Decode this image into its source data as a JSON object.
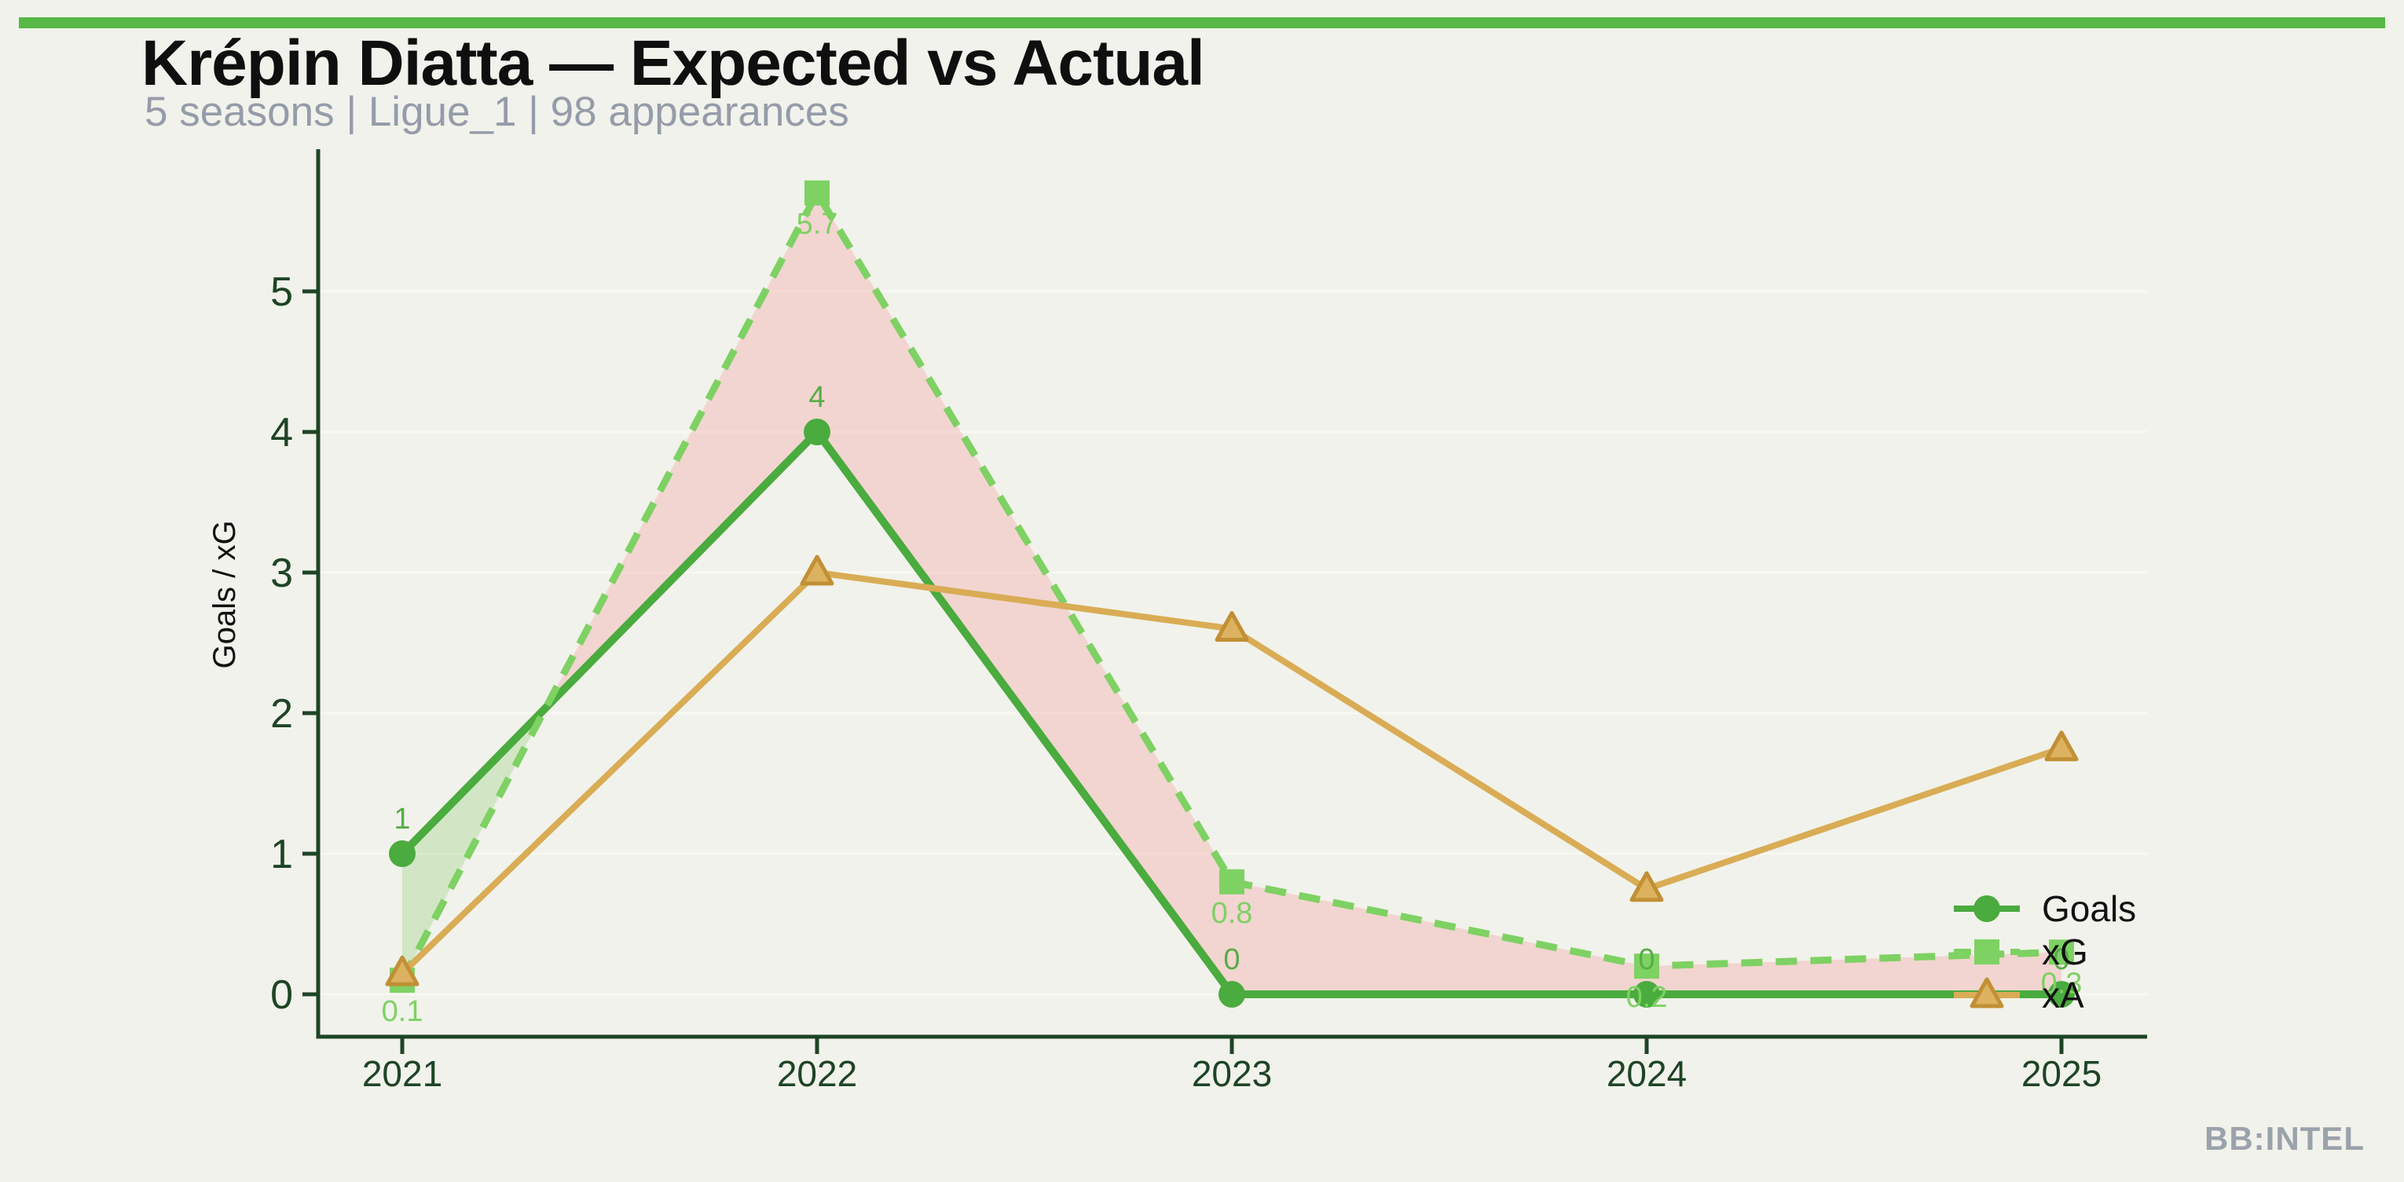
{
  "page": {
    "background": "#f1f2eb",
    "accent_bar_color": "#57b846"
  },
  "footer": {
    "brand": "BB:INTEL",
    "color": "#9aa2ab"
  },
  "chart_data": {
    "type": "line",
    "title": "Krépin Diatta — Expected vs Actual",
    "subtitle": "5 seasons | Ligue_1 | 98 appearances",
    "x": [
      2021,
      2022,
      2023,
      2024,
      2025
    ],
    "xlabel": "",
    "ylabel": "Goals / xG",
    "yticks": [
      0,
      1,
      2,
      3,
      4,
      5
    ],
    "ylim": [
      0,
      6
    ],
    "grid": "horizontal-only",
    "legend_position": "lower right",
    "axis_color": "#1e4426",
    "tick_label_color": "#1e4426",
    "grid_color": "#f8f9f2",
    "series": [
      {
        "name": "Goals",
        "style": "solid",
        "marker": "circle",
        "color": "#4aab3e",
        "values": [
          1,
          4,
          0,
          0,
          0
        ],
        "point_labels": [
          "1",
          "4",
          "0",
          "0",
          "0"
        ],
        "label_color": "#57ad47",
        "label_side": "above"
      },
      {
        "name": "xG",
        "style": "dashed",
        "marker": "square",
        "color": "#7ed163",
        "values": [
          0.1,
          5.7,
          0.8,
          0.2,
          0.3
        ],
        "point_labels": [
          "0.1",
          "5.7",
          "0.8",
          "0.2",
          "0.3"
        ],
        "label_color": "#7ed163",
        "label_side": "below"
      },
      {
        "name": "xA",
        "style": "solid",
        "marker": "triangle",
        "color": "#d9ac55",
        "marker_fill": "#dcb260",
        "marker_edge": "#c28f35",
        "values": [
          0.15,
          3.0,
          2.6,
          0.75,
          1.75
        ],
        "point_labels": null
      }
    ],
    "fills": {
      "between": [
        "Goals",
        "xG"
      ],
      "above_color": "rgba(130,200,100,0.28)",
      "below_color": "rgba(244,178,175,0.45)"
    }
  }
}
